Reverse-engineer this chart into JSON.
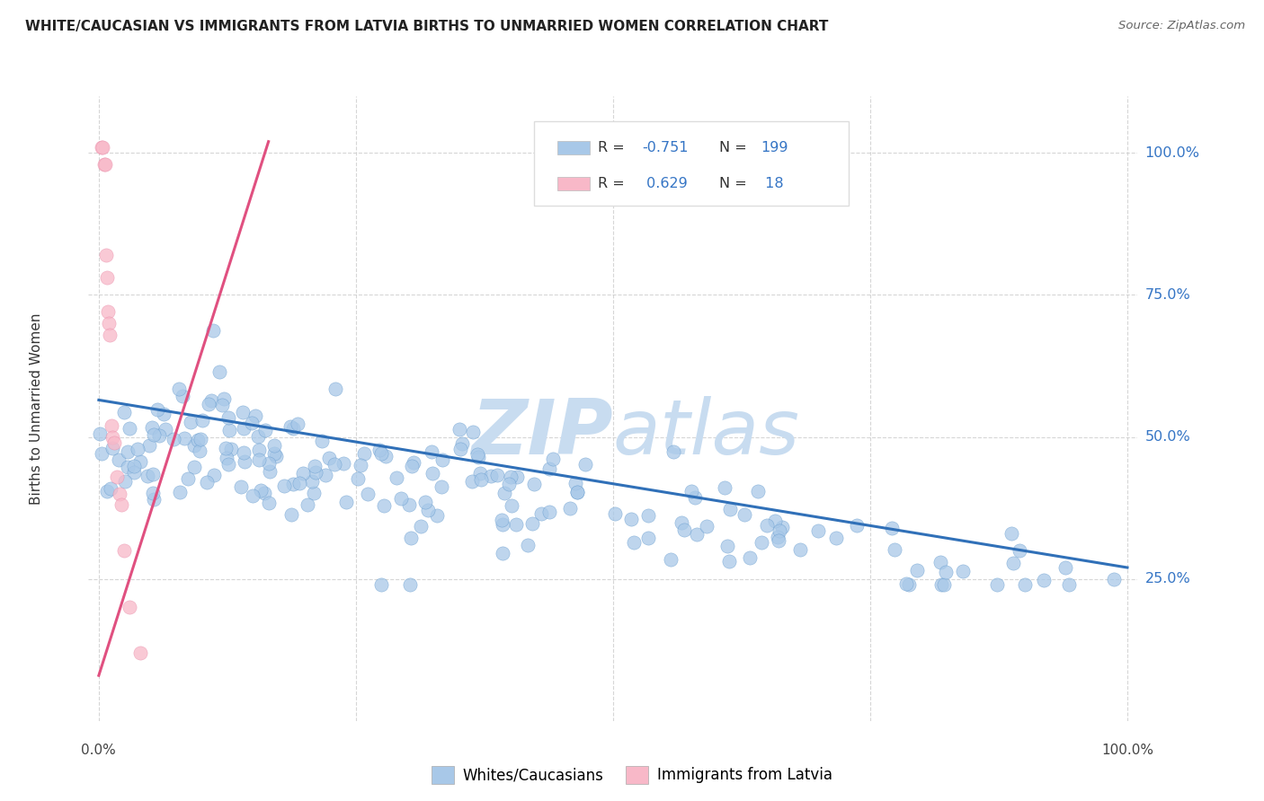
{
  "title": "WHITE/CAUCASIAN VS IMMIGRANTS FROM LATVIA BIRTHS TO UNMARRIED WOMEN CORRELATION CHART",
  "source": "Source: ZipAtlas.com",
  "ylabel": "Births to Unmarried Women",
  "yticks": [
    "100.0%",
    "75.0%",
    "50.0%",
    "25.0%"
  ],
  "ytick_positions": [
    1.0,
    0.75,
    0.5,
    0.25
  ],
  "color_blue": "#a8c8e8",
  "color_blue_dark": "#5590c8",
  "color_blue_line": "#3070b8",
  "color_pink": "#f8b8c8",
  "color_pink_dark": "#e880a0",
  "color_pink_line": "#e05080",
  "color_r_value": "#3575c5",
  "color_grid": "#cccccc",
  "watermark_color": "#c8dcf0",
  "background_color": "#ffffff",
  "xlim": [
    0.0,
    1.0
  ],
  "ylim": [
    0.0,
    1.05
  ],
  "blue_line_x0": 0.0,
  "blue_line_y0": 0.565,
  "blue_line_x1": 1.0,
  "blue_line_y1": 0.27,
  "pink_line_x0": 0.0,
  "pink_line_y0": 0.08,
  "pink_line_x1": 0.165,
  "pink_line_y1": 1.02
}
